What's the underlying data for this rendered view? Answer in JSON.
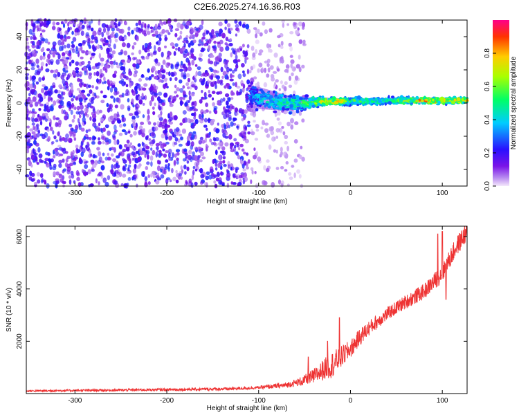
{
  "title": "C2E6.2025.274.16.36.R03",
  "chart_data": [
    {
      "type": "heatmap",
      "xlabel": "Height of straight line (km)",
      "ylabel": "Frequency (Hz)",
      "xlim": [
        -353,
        127
      ],
      "ylim": [
        -50,
        50
      ],
      "x_ticks": [
        -300,
        -200,
        -100,
        0,
        100
      ],
      "y_ticks": [
        -40,
        -20,
        0,
        20,
        40
      ],
      "colorbar": {
        "label": "Normalized spectral amplitude",
        "range": [
          0,
          1
        ],
        "ticks": [
          0.0,
          0.2,
          0.4,
          0.6,
          0.8
        ],
        "colormap": "rainbow"
      },
      "noise_floor": {
        "x_range": [
          -353,
          -110
        ],
        "level": 0.2
      },
      "signal_track": [
        {
          "x": -110,
          "freq": 4,
          "spread": 6,
          "amp": 0.35
        },
        {
          "x": -90,
          "freq": 2,
          "spread": 5,
          "amp": 0.45
        },
        {
          "x": -70,
          "freq": 0,
          "spread": 4,
          "amp": 0.5
        },
        {
          "x": -50,
          "freq": 0,
          "spread": 3,
          "amp": 0.55
        },
        {
          "x": -30,
          "freq": 1,
          "spread": 2,
          "amp": 0.75
        },
        {
          "x": -10,
          "freq": 1,
          "spread": 1.5,
          "amp": 0.8
        },
        {
          "x": 0,
          "freq": 1,
          "spread": 1.5,
          "amp": 0.6
        },
        {
          "x": 20,
          "freq": 1,
          "spread": 1.5,
          "amp": 0.55
        },
        {
          "x": 50,
          "freq": 1.5,
          "spread": 1.5,
          "amp": 0.6
        },
        {
          "x": 75,
          "freq": 1.5,
          "spread": 1.5,
          "amp": 0.85
        },
        {
          "x": 100,
          "freq": 1.5,
          "spread": 1.5,
          "amp": 0.8
        },
        {
          "x": 127,
          "freq": 1.5,
          "spread": 1.5,
          "amp": 0.8
        }
      ],
      "grid": false
    },
    {
      "type": "line",
      "xlabel": "Height of straight line (km)",
      "ylabel": "SNR (10 * v/v)",
      "xlim": [
        -353,
        127
      ],
      "ylim": [
        0,
        6400
      ],
      "x_ticks": [
        -300,
        -200,
        -100,
        0,
        100
      ],
      "y_ticks": [
        2000,
        4000,
        6000
      ],
      "line_color": "#ee3333",
      "grid": false,
      "trend": {
        "x": [
          -353,
          -200,
          -130,
          -100,
          -70,
          -50,
          -40,
          -30,
          -20,
          -10,
          0,
          10,
          20,
          40,
          60,
          80,
          100,
          115,
          127
        ],
        "y": [
          100,
          150,
          180,
          230,
          320,
          500,
          650,
          900,
          1100,
          1400,
          1700,
          2150,
          2500,
          3050,
          3500,
          3900,
          4600,
          5600,
          6200
        ]
      },
      "noise": {
        "x": [
          -353,
          -100,
          -60,
          -40,
          -20,
          0,
          40,
          80,
          127
        ],
        "amplitude": [
          40,
          60,
          130,
          300,
          500,
          350,
          250,
          300,
          400
        ]
      },
      "spikes": [
        {
          "x": -46,
          "y": 1400
        },
        {
          "x": -25,
          "y": 2000
        },
        {
          "x": -12,
          "y": 2900
        },
        {
          "x": 95,
          "y": 6100
        },
        {
          "x": 100,
          "y": 6200
        },
        {
          "x": 104,
          "y": 3600
        }
      ]
    }
  ]
}
